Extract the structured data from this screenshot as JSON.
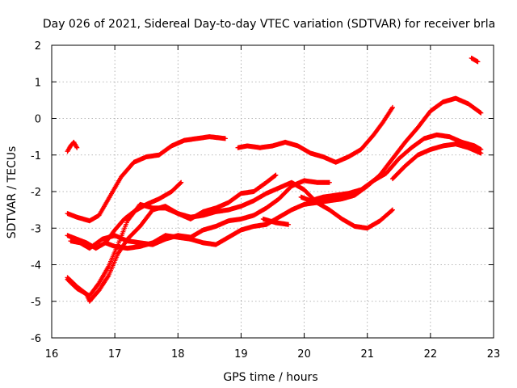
{
  "chart_data": {
    "type": "scatter",
    "title": "Day 026 of 2021, Sidereal Day-to-day VTEC variation (SDTVAR) for receiver brla",
    "xlabel": "GPS time / hours",
    "ylabel": "SDTVAR / TECUs",
    "xlim": [
      16,
      23
    ],
    "ylim": [
      -6,
      2
    ],
    "xticks": [
      16,
      17,
      18,
      19,
      20,
      21,
      22,
      23
    ],
    "yticks": [
      -6,
      -5,
      -4,
      -3,
      -2,
      -1,
      0,
      1,
      2
    ],
    "xtick_labels": [
      "16",
      "17",
      "18",
      "19",
      "20",
      "21",
      "22",
      "23"
    ],
    "ytick_labels": [
      "-6",
      "-5",
      "-4",
      "-3",
      "-2",
      "-1",
      "0",
      "1",
      "2"
    ],
    "grid": true,
    "marker": "+",
    "color": "#ff0000",
    "series": [
      {
        "name": "arc-a",
        "x": [
          16.25,
          16.3,
          16.35,
          16.4
        ],
        "y": [
          -0.9,
          -0.75,
          -0.65,
          -0.8
        ]
      },
      {
        "name": "arc-b",
        "x": [
          16.25,
          16.4,
          16.6,
          16.75,
          16.9,
          17.1,
          17.3,
          17.5,
          17.7,
          17.9,
          18.1,
          18.3,
          18.5,
          18.75
        ],
        "y": [
          -2.6,
          -2.7,
          -2.8,
          -2.65,
          -2.2,
          -1.6,
          -1.2,
          -1.05,
          -1.0,
          -0.75,
          -0.6,
          -0.55,
          -0.5,
          -0.55
        ]
      },
      {
        "name": "arc-c",
        "x": [
          18.95,
          19.1,
          19.3,
          19.5,
          19.7,
          19.9,
          20.1,
          20.3,
          20.5,
          20.7,
          20.9,
          21.1,
          21.25,
          21.4
        ],
        "y": [
          -0.8,
          -0.75,
          -0.8,
          -0.75,
          -0.65,
          -0.75,
          -0.95,
          -1.05,
          -1.2,
          -1.05,
          -0.85,
          -0.45,
          -0.1,
          0.3
        ]
      },
      {
        "name": "arc-d",
        "x": [
          16.25,
          16.4,
          16.55,
          16.7,
          16.85,
          17.0,
          17.15,
          17.3,
          17.5,
          17.7,
          17.9,
          18.05
        ],
        "y": [
          -3.2,
          -3.3,
          -3.4,
          -3.55,
          -3.4,
          -3.05,
          -2.75,
          -2.55,
          -2.35,
          -2.2,
          -2.0,
          -1.75
        ]
      },
      {
        "name": "arc-e",
        "x": [
          16.25,
          16.4,
          16.6,
          16.75,
          16.9,
          17.05,
          17.2,
          17.4,
          17.6,
          17.8,
          18.0,
          18.2,
          18.4,
          18.6,
          18.8,
          19.0,
          19.2,
          19.4,
          19.55
        ],
        "y": [
          -4.4,
          -4.65,
          -4.85,
          -4.5,
          -4.05,
          -3.45,
          -2.8,
          -2.35,
          -2.45,
          -2.45,
          -2.6,
          -2.75,
          -2.55,
          -2.45,
          -2.3,
          -2.05,
          -2.0,
          -1.75,
          -1.55
        ]
      },
      {
        "name": "arc-f",
        "x": [
          16.25,
          16.4,
          16.55,
          16.6,
          16.75,
          16.9,
          17.05,
          17.2,
          17.4,
          17.6,
          17.8,
          18.0,
          18.2,
          18.4,
          18.6,
          18.8,
          19.0,
          19.2,
          19.4,
          19.6,
          19.8,
          20.0,
          20.2,
          20.4,
          20.6,
          20.8,
          21.0,
          21.2,
          21.4
        ],
        "y": [
          -4.35,
          -4.6,
          -4.8,
          -5.0,
          -4.7,
          -4.3,
          -3.7,
          -3.3,
          -2.95,
          -2.5,
          -2.4,
          -2.6,
          -2.7,
          -2.65,
          -2.55,
          -2.5,
          -2.4,
          -2.25,
          -2.05,
          -1.9,
          -1.75,
          -1.95,
          -2.3,
          -2.5,
          -2.75,
          -2.95,
          -3.0,
          -2.8,
          -2.5
        ]
      },
      {
        "name": "arc-g",
        "x": [
          16.3,
          16.45,
          16.6,
          16.8,
          17.0,
          17.2,
          17.4,
          17.6,
          17.8,
          18.0,
          18.2,
          18.4,
          18.6,
          18.8,
          19.0,
          19.2,
          19.4,
          19.6,
          19.8,
          20.0,
          20.2,
          20.4
        ],
        "y": [
          -3.35,
          -3.4,
          -3.55,
          -3.3,
          -3.2,
          -3.35,
          -3.4,
          -3.45,
          -3.3,
          -3.2,
          -3.25,
          -3.05,
          -2.95,
          -2.8,
          -2.75,
          -2.65,
          -2.45,
          -2.2,
          -1.85,
          -1.7,
          -1.75,
          -1.75
        ]
      },
      {
        "name": "arc-h",
        "x": [
          16.85,
          17.0,
          17.2,
          17.4,
          17.6,
          17.8,
          18.0,
          18.2,
          18.4,
          18.6,
          18.8,
          19.0,
          19.2,
          19.4,
          19.6,
          19.8,
          20.0,
          20.2,
          20.4,
          20.6,
          20.8,
          21.0,
          21.2,
          21.4,
          21.6,
          21.8,
          22.0,
          22.2,
          22.4,
          22.6,
          22.8
        ],
        "y": [
          -3.4,
          -3.5,
          -3.55,
          -3.5,
          -3.4,
          -3.2,
          -3.25,
          -3.3,
          -3.4,
          -3.45,
          -3.25,
          -3.05,
          -2.95,
          -2.9,
          -2.7,
          -2.5,
          -2.35,
          -2.3,
          -2.25,
          -2.2,
          -2.1,
          -1.85,
          -1.55,
          -1.1,
          -0.65,
          -0.25,
          0.2,
          0.45,
          0.55,
          0.4,
          0.15
        ]
      },
      {
        "name": "arc-i",
        "x": [
          19.35,
          19.55,
          19.75
        ],
        "y": [
          -2.75,
          -2.85,
          -2.9
        ]
      },
      {
        "name": "arc-j",
        "x": [
          19.95,
          20.1,
          20.3,
          20.5,
          20.7,
          20.9,
          21.1,
          21.3,
          21.5,
          21.7,
          21.9,
          22.1,
          22.3,
          22.5,
          22.7,
          22.8
        ],
        "y": [
          -2.15,
          -2.25,
          -2.15,
          -2.1,
          -2.05,
          -1.95,
          -1.7,
          -1.5,
          -1.1,
          -0.8,
          -0.55,
          -0.45,
          -0.5,
          -0.65,
          -0.75,
          -0.85
        ]
      },
      {
        "name": "arc-k",
        "x": [
          21.4,
          21.6,
          21.8,
          22.0,
          22.2,
          22.4,
          22.6,
          22.8
        ],
        "y": [
          -1.65,
          -1.3,
          -1.0,
          -0.85,
          -0.75,
          -0.7,
          -0.8,
          -0.95
        ]
      },
      {
        "name": "arc-l",
        "x": [
          22.65,
          22.75
        ],
        "y": [
          1.65,
          1.55
        ]
      }
    ]
  }
}
